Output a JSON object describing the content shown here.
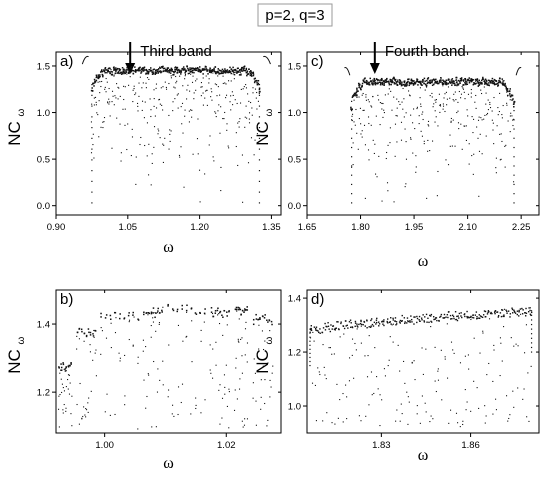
{
  "figure": {
    "header": "p=2, q=3"
  },
  "chart_data": [
    {
      "panel": "a)",
      "type": "scatter",
      "annotation": "Third band",
      "xlabel": "ω",
      "ylabel": "NC",
      "ylabel_sub": "ω",
      "xlim": [
        0.9,
        1.37
      ],
      "ylim": [
        -0.1,
        1.65
      ],
      "xticks": [
        0.9,
        1.05,
        1.2,
        1.35
      ],
      "xtick_labels": [
        "0.90",
        "1.05",
        "1.20",
        "1.35"
      ],
      "yticks": [
        0.0,
        0.5,
        1.0,
        1.5
      ],
      "ytick_labels": [
        "0.0",
        "0.5",
        "1.0",
        "1.5"
      ],
      "arrow_x": 1.055,
      "band": {
        "x_start": 0.975,
        "x_end": 1.325,
        "top_max": 1.5,
        "top_edge": 1.3,
        "floor": 0.03
      },
      "isolated_arcs": [
        {
          "x_from": 0.955,
          "x_to": 0.968,
          "y_from": 1.52,
          "y_to": 1.6
        },
        {
          "x_from": 1.333,
          "x_to": 1.348,
          "y_from": 1.6,
          "y_to": 1.52
        }
      ]
    },
    {
      "panel": "c)",
      "type": "scatter",
      "annotation": "Fourth band",
      "xlabel": "ω",
      "ylabel": "NC",
      "ylabel_sub": "ω",
      "xlim": [
        1.65,
        2.3
      ],
      "ylim": [
        -0.1,
        1.65
      ],
      "xticks": [
        1.65,
        1.8,
        1.95,
        2.1,
        2.25
      ],
      "xtick_labels": [
        "1.65",
        "1.80",
        "1.95",
        "2.10",
        "2.25"
      ],
      "yticks": [
        0.0,
        0.5,
        1.0,
        1.5
      ],
      "ytick_labels": [
        "0.0",
        "0.5",
        "1.0",
        "1.5"
      ],
      "arrow_x": 1.84,
      "band": {
        "x_start": 1.775,
        "x_end": 2.23,
        "top_max": 1.38,
        "top_edge": 1.12,
        "floor": 0.03
      },
      "isolated_arcs": [
        {
          "x_from": 1.755,
          "x_to": 1.77,
          "y_from": 1.48,
          "y_to": 1.4
        },
        {
          "x_from": 2.236,
          "x_to": 2.25,
          "y_from": 1.4,
          "y_to": 1.48
        }
      ]
    },
    {
      "panel": "b)",
      "type": "scatter",
      "xlabel": "ω",
      "ylabel": "NC",
      "ylabel_sub": "ω",
      "xlim": [
        0.992,
        1.029
      ],
      "ylim": [
        1.08,
        1.5
      ],
      "xticks": [
        1.0,
        1.02
      ],
      "xtick_labels": [
        "1.00",
        "1.02"
      ],
      "yticks": [
        1.2,
        1.4
      ],
      "ytick_labels": [
        "1.2",
        "1.4"
      ],
      "clusters": [
        {
          "x_from": 0.9925,
          "x_to": 0.9945,
          "top": 1.29
        },
        {
          "x_from": 0.9955,
          "x_to": 0.9985,
          "top": 1.39
        },
        {
          "x_from": 0.9995,
          "x_to": 1.0055,
          "top": 1.44
        },
        {
          "x_from": 1.0065,
          "x_to": 1.0095,
          "top": 1.45
        },
        {
          "x_from": 1.0105,
          "x_to": 1.0165,
          "top": 1.46
        },
        {
          "x_from": 1.0175,
          "x_to": 1.0205,
          "top": 1.45
        },
        {
          "x_from": 1.0215,
          "x_to": 1.0235,
          "top": 1.46
        },
        {
          "x_from": 1.0245,
          "x_to": 1.0275,
          "top": 1.43
        }
      ],
      "floor": 1.09
    },
    {
      "panel": "d)",
      "type": "scatter",
      "xlabel": "ω",
      "ylabel": "NC",
      "ylabel_sub": "ω",
      "xlim": [
        1.805,
        1.883
      ],
      "ylim": [
        0.9,
        1.43
      ],
      "xticks": [
        1.83,
        1.86
      ],
      "xtick_labels": [
        "1.83",
        "1.86"
      ],
      "yticks": [
        1.0,
        1.2,
        1.4
      ],
      "ytick_labels": [
        "1.0",
        "1.2",
        "1.4"
      ],
      "band": {
        "x_start": 1.806,
        "x_end": 1.8805,
        "top_start": 1.3,
        "top_end": 1.37,
        "floor": 0.92
      }
    }
  ]
}
